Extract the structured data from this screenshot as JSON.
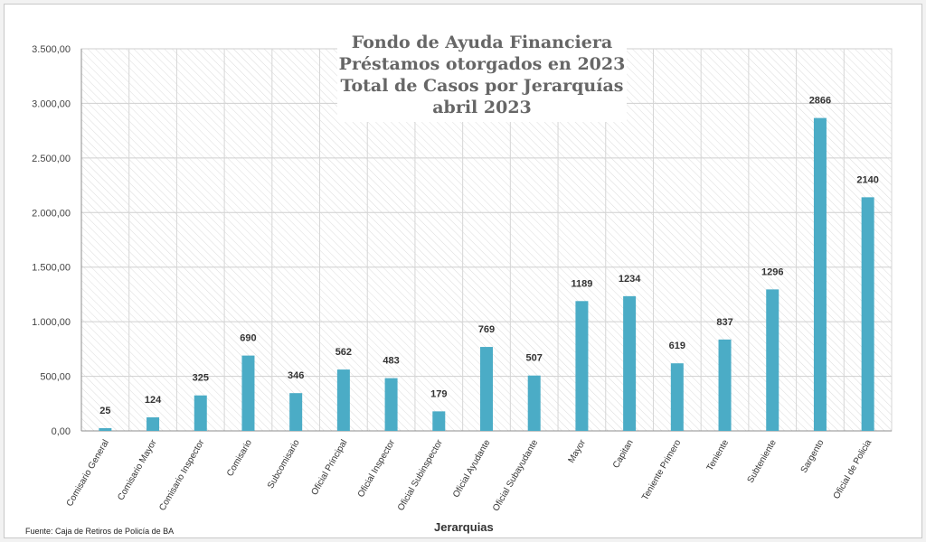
{
  "chart_data": {
    "type": "bar",
    "title_lines": [
      "Fondo de Ayuda Financiera",
      "Préstamos otorgados en 2023",
      "Total de Casos por Jerarquías",
      "abril 2023"
    ],
    "xlabel": "Jerarquias",
    "ylabel": "",
    "ylim": [
      0,
      3500
    ],
    "y_ticks": [
      0,
      500,
      1000,
      1500,
      2000,
      2500,
      3000,
      3500
    ],
    "y_tick_labels": [
      "0,00",
      "500,00",
      "1.000,00",
      "1.500,00",
      "2.000,00",
      "2.500,00",
      "3.000,00",
      "3.500,00"
    ],
    "categories": [
      "Comisario General",
      "Comisario Mayor",
      "Comisario Inspector",
      "Comisario",
      "Subcomisario",
      "Oficial Principal",
      "Oficial Inspector",
      "Oficial Subinspector",
      "Oficial Ayudante",
      "Oficial Subayudante",
      "Mayor",
      "Capitan",
      "Teniente Primero",
      "Teniente",
      "Subteniente",
      "Sargento",
      "Oficial de Policia"
    ],
    "values": [
      25,
      124,
      325,
      690,
      346,
      562,
      483,
      179,
      769,
      507,
      1189,
      1234,
      619,
      837,
      1296,
      2866,
      2140
    ],
    "bar_color": "#4bacc6",
    "grid": true,
    "legend": "none"
  },
  "source_note": "Fuente: Caja de Retiros de Policía de BA"
}
